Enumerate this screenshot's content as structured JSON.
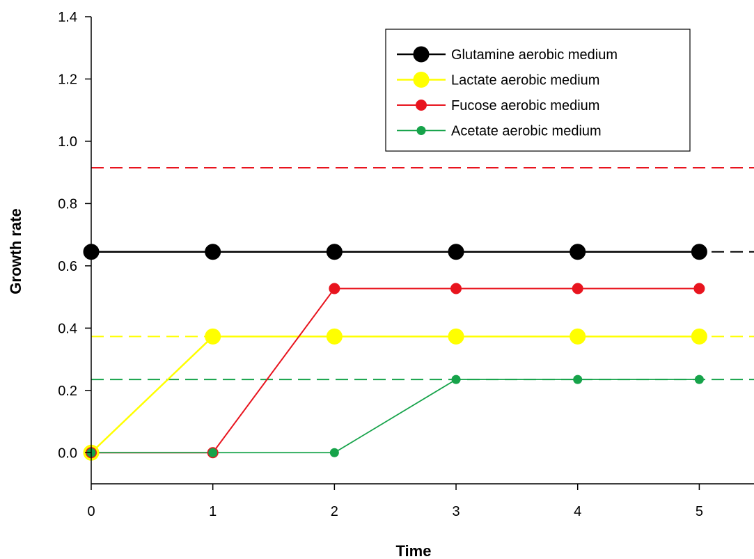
{
  "chart_data": {
    "type": "line",
    "xlabel": "Time",
    "ylabel": "Growth rate",
    "xlim": [
      0,
      5.45
    ],
    "ylim": [
      -0.1,
      1.4
    ],
    "x_ticks": [
      0,
      1,
      2,
      3,
      4,
      5
    ],
    "y_ticks": [
      0.0,
      0.2,
      0.4,
      0.6,
      0.8,
      1.0,
      1.2,
      1.4
    ],
    "x_tick_labels": [
      "0",
      "1",
      "2",
      "3",
      "4",
      "5"
    ],
    "y_tick_labels": [
      "0.0",
      "0.2",
      "0.4",
      "0.6",
      "0.8",
      "1.0",
      "1.2",
      "1.4"
    ],
    "grid": false,
    "legend_position": "top-right",
    "series": [
      {
        "name": "Glutamine aerobic medium",
        "color": "#000000",
        "marker": "large",
        "x": [
          0,
          1,
          2,
          3,
          4,
          5
        ],
        "values": [
          0.645,
          0.645,
          0.645,
          0.645,
          0.645,
          0.645
        ]
      },
      {
        "name": "Lactate aerobic medium",
        "color": "#ffff00",
        "marker": "large",
        "x": [
          0,
          1,
          2,
          3,
          4,
          5
        ],
        "values": [
          0.0,
          0.373,
          0.373,
          0.373,
          0.373,
          0.373
        ]
      },
      {
        "name": "Fucose aerobic medium",
        "color": "#e8141e",
        "marker": "medium",
        "x": [
          0,
          1,
          2,
          3,
          4,
          5
        ],
        "values": [
          0.0,
          0.0,
          0.527,
          0.527,
          0.527,
          0.527
        ]
      },
      {
        "name": "Acetate aerobic medium",
        "color": "#16a34a",
        "marker": "small",
        "x": [
          0,
          1,
          2,
          3,
          4,
          5
        ],
        "values": [
          0.0,
          0.0,
          0.0,
          0.235,
          0.235,
          0.235
        ]
      }
    ],
    "reference_lines": [
      {
        "color": "#e8141e",
        "y": 0.915
      },
      {
        "color": "#000000",
        "y": 0.645
      },
      {
        "color": "#ffff00",
        "y": 0.373
      },
      {
        "color": "#16a34a",
        "y": 0.235
      }
    ]
  }
}
